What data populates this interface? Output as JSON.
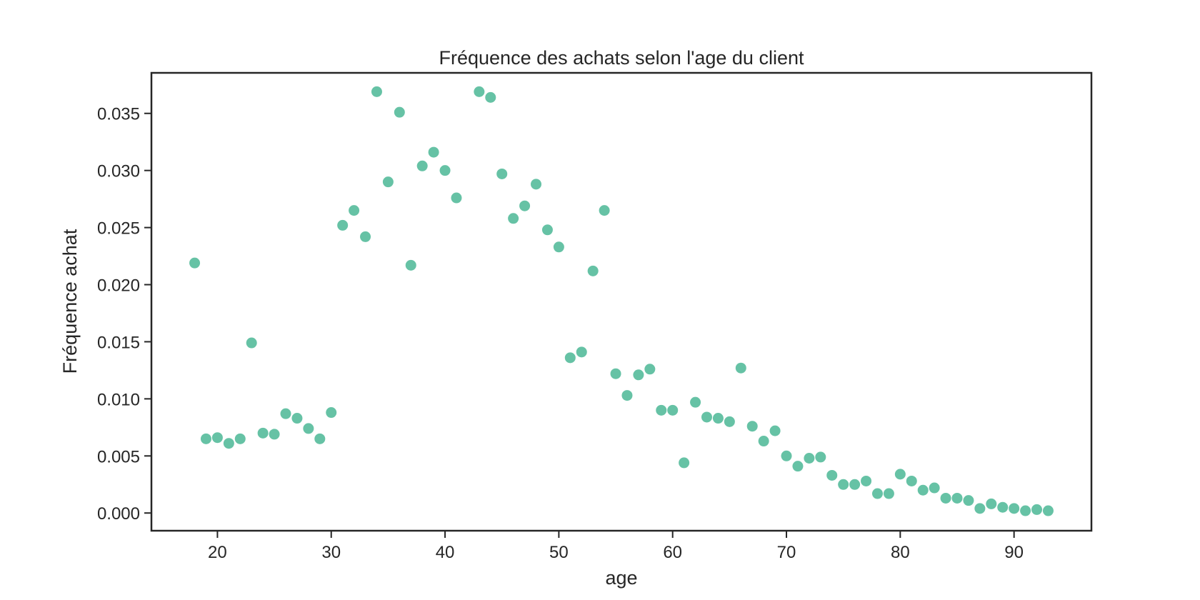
{
  "chart_data": {
    "type": "scatter",
    "title": "Fréquence des achats selon l'age du client",
    "xlabel": "age",
    "ylabel": "Fréquence achat",
    "xlim": [
      14.2,
      96.8
    ],
    "ylim": [
      -0.00155,
      0.03855
    ],
    "x_ticks": [
      20,
      30,
      40,
      50,
      60,
      70,
      80,
      90
    ],
    "x_tick_labels": [
      "20",
      "30",
      "40",
      "50",
      "60",
      "70",
      "80",
      "90"
    ],
    "y_ticks": [
      0.0,
      0.005,
      0.01,
      0.015,
      0.02,
      0.025,
      0.03,
      0.035
    ],
    "y_tick_labels": [
      "0.000",
      "0.005",
      "0.010",
      "0.015",
      "0.020",
      "0.025",
      "0.030",
      "0.035"
    ],
    "grid": false,
    "point_color": "#66c2a5",
    "series": [
      {
        "x": [
          18,
          19,
          20,
          21,
          22,
          23,
          24,
          25,
          26,
          27,
          28,
          29,
          30,
          31,
          32,
          33,
          34,
          35,
          36,
          37,
          38,
          39,
          40,
          41,
          43,
          44,
          45,
          46,
          47,
          48,
          49,
          50,
          51,
          52,
          53,
          54,
          55,
          56,
          57,
          58,
          59,
          60,
          61,
          62,
          63,
          64,
          65,
          66,
          67,
          68,
          69,
          70,
          71,
          72,
          73,
          74,
          75,
          76,
          77,
          78,
          79,
          80,
          81,
          82,
          83,
          84,
          85,
          86,
          87,
          88,
          89,
          90,
          91,
          92,
          93
        ],
        "y": [
          0.0219,
          0.0065,
          0.0066,
          0.0061,
          0.0065,
          0.0149,
          0.007,
          0.0069,
          0.0087,
          0.0083,
          0.0074,
          0.0065,
          0.0088,
          0.0252,
          0.0265,
          0.0242,
          0.0369,
          0.029,
          0.0351,
          0.0217,
          0.0304,
          0.0316,
          0.03,
          0.0276,
          0.0369,
          0.0364,
          0.0297,
          0.0258,
          0.0269,
          0.0288,
          0.0248,
          0.0233,
          0.0136,
          0.0141,
          0.0212,
          0.0265,
          0.0122,
          0.0103,
          0.0121,
          0.0126,
          0.009,
          0.009,
          0.0044,
          0.0097,
          0.0084,
          0.0083,
          0.008,
          0.0127,
          0.0076,
          0.0063,
          0.0072,
          0.005,
          0.0041,
          0.0048,
          0.0049,
          0.0033,
          0.0025,
          0.0025,
          0.0028,
          0.0017,
          0.0017,
          0.0034,
          0.0028,
          0.002,
          0.0022,
          0.0013,
          0.0013,
          0.0011,
          0.0004,
          0.0008,
          0.0005,
          0.0004,
          0.0002,
          0.0003,
          0.0002
        ]
      }
    ]
  }
}
